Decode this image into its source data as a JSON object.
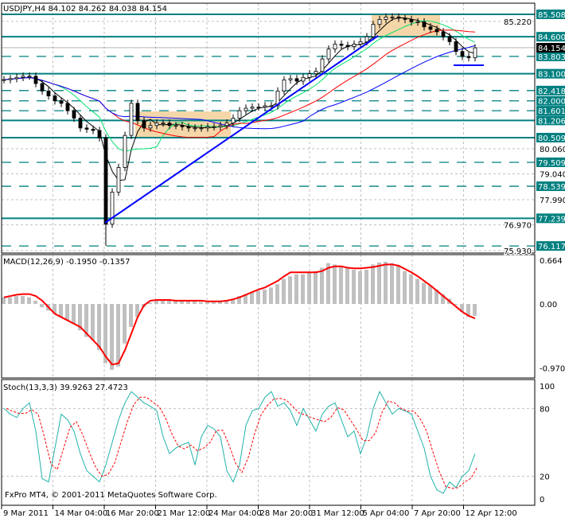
{
  "chart_data": [
    {
      "type": "candlestick",
      "title": "USDJPY,H4  84.102 84.262 84.038 84.154",
      "x_tick_labels": [
        "9 Mar 2011",
        "14 Mar 04:00",
        "16 Mar 20:00",
        "21 Mar 12:00",
        "24 Mar 04:00",
        "28 Mar 20:00",
        "31 Mar 12:00",
        "5 Apr 04:00",
        "7 Apr 20:00",
        "12 Apr 12:00"
      ],
      "ylim": [
        75.93,
        85.75
      ],
      "y_tick_labels": [
        "85.220",
        "80.060",
        "79.040",
        "77.990",
        "76.970",
        "75.930"
      ],
      "current_price": "84.154",
      "close": [
        82.86,
        82.9,
        82.95,
        83.0,
        83.0,
        82.7,
        82.4,
        82.2,
        82.0,
        81.9,
        81.6,
        81.3,
        80.9,
        80.85,
        80.8,
        80.5,
        77.0,
        78.3,
        79.3,
        80.6,
        81.9,
        81.2,
        80.9,
        81.0,
        81.1,
        81.1,
        81.0,
        81.0,
        80.95,
        80.9,
        80.9,
        80.9,
        80.95,
        80.95,
        81.0,
        81.1,
        81.3,
        81.6,
        81.7,
        81.75,
        81.75,
        81.8,
        81.8,
        82.4,
        82.85,
        82.9,
        82.8,
        82.95,
        83.1,
        83.2,
        83.7,
        84.1,
        84.3,
        84.25,
        84.2,
        84.3,
        84.4,
        84.6,
        85.1,
        85.3,
        85.4,
        85.4,
        85.35,
        85.3,
        85.2,
        85.2,
        85.0,
        84.9,
        84.8,
        84.6,
        84.4,
        84.0,
        83.8,
        83.75,
        84.15
      ],
      "low_extreme": 76.117,
      "levels_solid": [
        "85.508",
        "84.600",
        "83.100",
        "81.206",
        "80.509",
        "77.239"
      ],
      "levels_dashed": [
        "83.803",
        "82.418",
        "82.000",
        "81.601",
        "79.509",
        "78.539",
        "76.117"
      ],
      "level_color": "#008080",
      "moving_average_colors": [
        "#000000",
        "#00e070",
        "#ff0000",
        "#0000ff"
      ],
      "trendline_color": "#0000ff",
      "zone_color": "#f5d6a8"
    },
    {
      "type": "bar+line",
      "title": "MACD(12,26,9) -0.1950 -0.1357",
      "ylim": [
        -0.9704,
        0.664
      ],
      "y_tick_labels": [
        "0.664",
        "0.00",
        "-0.9704"
      ],
      "histogram": [
        0.1,
        0.1,
        0.12,
        0.12,
        0.1,
        0.05,
        -0.05,
        -0.1,
        -0.15,
        -0.2,
        -0.25,
        -0.3,
        -0.4,
        -0.5,
        -0.55,
        -0.7,
        -0.9,
        -1.0,
        -0.95,
        -0.6,
        -0.35,
        -0.2,
        -0.05,
        0.02,
        0.05,
        0.06,
        0.05,
        0.05,
        0.04,
        0.04,
        0.04,
        0.03,
        0.03,
        0.03,
        0.04,
        0.05,
        0.08,
        0.12,
        0.15,
        0.18,
        0.2,
        0.22,
        0.25,
        0.3,
        0.38,
        0.42,
        0.45,
        0.45,
        0.48,
        0.5,
        0.55,
        0.62,
        0.6,
        0.58,
        0.55,
        0.52,
        0.5,
        0.52,
        0.6,
        0.63,
        0.64,
        0.62,
        0.58,
        0.5,
        0.45,
        0.38,
        0.32,
        0.28,
        0.22,
        0.15,
        0.08,
        0.0,
        -0.12,
        -0.2,
        -0.18
      ],
      "signal": [
        0.1,
        0.12,
        0.14,
        0.15,
        0.15,
        0.12,
        0.05,
        -0.05,
        -0.15,
        -0.2,
        -0.25,
        -0.3,
        -0.35,
        -0.45,
        -0.55,
        -0.65,
        -0.8,
        -0.92,
        -0.9,
        -0.7,
        -0.45,
        -0.2,
        -0.02,
        0.05,
        0.06,
        0.06,
        0.06,
        0.05,
        0.05,
        0.05,
        0.05,
        0.05,
        0.04,
        0.04,
        0.04,
        0.05,
        0.07,
        0.1,
        0.14,
        0.18,
        0.22,
        0.25,
        0.3,
        0.35,
        0.42,
        0.48,
        0.48,
        0.48,
        0.48,
        0.48,
        0.5,
        0.55,
        0.57,
        0.57,
        0.55,
        0.54,
        0.54,
        0.55,
        0.56,
        0.58,
        0.6,
        0.6,
        0.58,
        0.53,
        0.48,
        0.42,
        0.35,
        0.28,
        0.2,
        0.12,
        0.04,
        -0.04,
        -0.12,
        -0.18,
        -0.22
      ],
      "histogram_color": "#c0c0c0",
      "signal_color": "#ff0000"
    },
    {
      "type": "line",
      "title": "Stoch(13,3,3) 39.9263 27.4723",
      "ylim": [
        0,
        100
      ],
      "y_tick_labels": [
        "100",
        "80",
        "20",
        "0"
      ],
      "main": [
        80,
        75,
        72,
        80,
        85,
        60,
        18,
        15,
        45,
        75,
        70,
        60,
        40,
        25,
        20,
        15,
        30,
        50,
        70,
        85,
        95,
        90,
        85,
        82,
        78,
        55,
        40,
        45,
        48,
        50,
        30,
        55,
        65,
        62,
        55,
        25,
        15,
        30,
        65,
        78,
        80,
        90,
        95,
        82,
        85,
        78,
        65,
        80,
        70,
        60,
        75,
        82,
        85,
        70,
        55,
        60,
        40,
        55,
        80,
        95,
        85,
        75,
        80,
        78,
        75,
        60,
        45,
        20,
        8,
        5,
        15,
        10,
        20,
        25,
        40
      ],
      "main_color": "#20b2aa",
      "signal_color": "#ff0000"
    }
  ],
  "footer": "FxPro MT4, © 2001-2011 MetaQuotes Software Corp."
}
